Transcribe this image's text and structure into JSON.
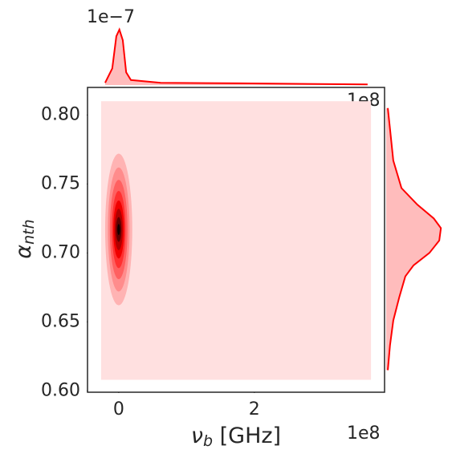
{
  "chart_data": {
    "type": "jointkde",
    "xlabel": {
      "main": "ν",
      "sub": "b",
      "rest": " [GHz]"
    },
    "ylabel": {
      "main": "α",
      "sub": "nth"
    },
    "x_offset": "1e8",
    "top_offset": "1e−7",
    "right_offset": "1e8",
    "xlim": [
      -0.46,
      3.92
    ],
    "ylim": [
      0.599,
      0.82
    ],
    "xticks": [
      0,
      2
    ],
    "yticks": [
      {
        "value": 0.6,
        "label": "0.60"
      },
      {
        "value": 0.65,
        "label": "0.65"
      },
      {
        "value": 0.7,
        "label": "0.70"
      },
      {
        "value": 0.75,
        "label": "0.75"
      },
      {
        "value": 0.8,
        "label": "0.80"
      }
    ],
    "color": "#ff0000",
    "background_region": {
      "x": [
        -0.26,
        3.72
      ],
      "y": [
        0.608,
        0.81
      ],
      "color": "#ffe0e0"
    },
    "contours": [
      {
        "x": 0,
        "y": 0.717,
        "rx": 0.2,
        "ry": 0.055,
        "color": "#ffb3b3"
      },
      {
        "x": 0,
        "y": 0.717,
        "rx": 0.16,
        "ry": 0.045,
        "color": "#ff8c8c"
      },
      {
        "x": 0,
        "y": 0.717,
        "rx": 0.13,
        "ry": 0.036,
        "color": "#ff6060"
      },
      {
        "x": 0,
        "y": 0.717,
        "rx": 0.1,
        "ry": 0.028,
        "color": "#ff3030"
      },
      {
        "x": 0,
        "y": 0.717,
        "rx": 0.08,
        "ry": 0.021,
        "color": "#f00000"
      },
      {
        "x": 0,
        "y": 0.717,
        "rx": 0.06,
        "ry": 0.015,
        "color": "#b00000"
      },
      {
        "x": 0,
        "y": 0.717,
        "rx": 0.04,
        "ry": 0.009,
        "color": "#600000"
      },
      {
        "x": 0,
        "y": 0.717,
        "rx": 0.02,
        "ry": 0.004,
        "color": "#100000"
      }
    ],
    "top_marginal": {
      "ylim": [
        0,
        1.1
      ],
      "x": [
        -0.2,
        -0.095,
        -0.035,
        0.01,
        0.06,
        0.11,
        0.18,
        0.62,
        1.8,
        3.67
      ],
      "values": [
        0.04,
        0.3,
        0.88,
        1.0,
        0.81,
        0.23,
        0.09,
        0.04,
        0.03,
        0.01
      ]
    },
    "right_marginal": {
      "xlim": [
        0,
        1.1
      ],
      "y": [
        0.805,
        0.79,
        0.767,
        0.747,
        0.735,
        0.725,
        0.718,
        0.709,
        0.7,
        0.691,
        0.683,
        0.668,
        0.651,
        0.633,
        0.615
      ],
      "values": [
        0.03,
        0.07,
        0.13,
        0.28,
        0.57,
        0.87,
        1.0,
        0.97,
        0.79,
        0.5,
        0.35,
        0.24,
        0.13,
        0.07,
        0.03
      ]
    },
    "fill_color": "#ffbcbc"
  }
}
